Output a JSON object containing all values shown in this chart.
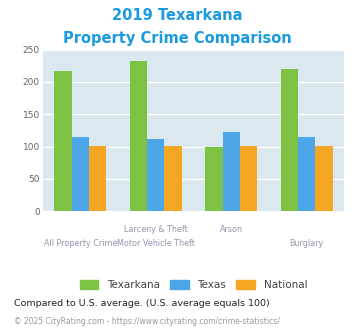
{
  "title_line1": "2019 Texarkana",
  "title_line2": "Property Crime Comparison",
  "title_color": "#1a9ae0",
  "texarkana": [
    217,
    232,
    100,
    220
  ],
  "texas": [
    114,
    112,
    122,
    115
  ],
  "national": [
    101,
    101,
    101,
    101
  ],
  "texarkana_color": "#7dc242",
  "texas_color": "#4da6e8",
  "national_color": "#f5a623",
  "ylim": [
    0,
    250
  ],
  "yticks": [
    0,
    50,
    100,
    150,
    200,
    250
  ],
  "plot_bg": "#dce8ef",
  "legend_labels": [
    "Texarkana",
    "Texas",
    "National"
  ],
  "footnote1": "Compared to U.S. average. (U.S. average equals 100)",
  "footnote2": "© 2025 CityRating.com - https://www.cityrating.com/crime-statistics/",
  "footnote1_color": "#222222",
  "footnote2_color": "#999999",
  "label_color": "#9b8fb0",
  "label_row1": [
    "",
    "Larceny & Theft",
    "Arson",
    ""
  ],
  "label_row2": [
    "All Property Crime",
    "Motor Vehicle Theft",
    "",
    "Burglary"
  ],
  "group_positions": [
    0,
    1,
    2,
    3
  ]
}
